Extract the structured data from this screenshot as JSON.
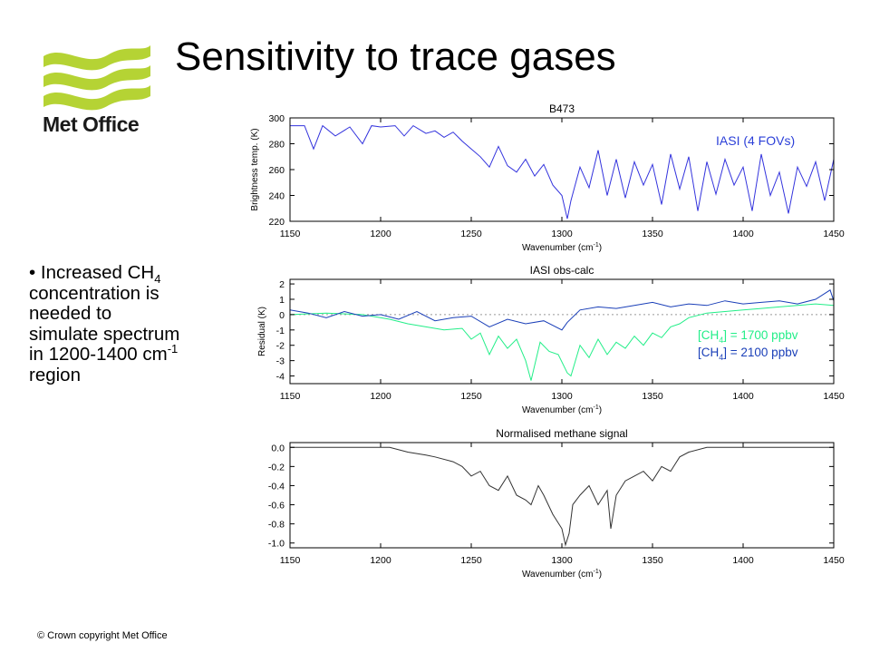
{
  "title": "Sensitivity to trace gases",
  "logo": {
    "text": "Met Office",
    "icon": "met-office-wave-logo",
    "color": "#b5d334"
  },
  "bullet": {
    "line1_pre": "• Increased CH",
    "line1_sub": "4",
    "line2": "concentration is",
    "line3": "needed to",
    "line4": "simulate spectrum",
    "line5_pre": "in 1200-1400 cm",
    "line5_sup": "-1",
    "line6": "region"
  },
  "footer": "© Crown copyright   Met Office",
  "chart_data": [
    {
      "type": "line",
      "title": "B473",
      "xlabel": "Wavenumber (cm-1)",
      "ylabel": "Brightness temp. (K)",
      "xlim": [
        1150,
        1450
      ],
      "ylim": [
        220,
        300
      ],
      "xticks": [
        "1150",
        "1200",
        "1250",
        "1300",
        "1350",
        "1400",
        "1450"
      ],
      "yticks": [
        "220",
        "240",
        "260",
        "280",
        "300"
      ],
      "series": [
        {
          "name": "IASI (4 FOVs)",
          "color": "#3333dd",
          "x": [
            1150,
            1158,
            1163,
            1168,
            1175,
            1183,
            1190,
            1195,
            1200,
            1208,
            1213,
            1218,
            1225,
            1230,
            1235,
            1240,
            1245,
            1250,
            1255,
            1260,
            1265,
            1270,
            1275,
            1280,
            1285,
            1290,
            1295,
            1300,
            1303,
            1305,
            1310,
            1315,
            1320,
            1325,
            1330,
            1335,
            1340,
            1345,
            1350,
            1355,
            1360,
            1365,
            1370,
            1375,
            1380,
            1385,
            1390,
            1395,
            1400,
            1405,
            1410,
            1415,
            1420,
            1425,
            1430,
            1435,
            1440,
            1445,
            1450
          ],
          "y": [
            294,
            294,
            276,
            294,
            286,
            293,
            280,
            294,
            293,
            294,
            286,
            294,
            288,
            290,
            285,
            289,
            282,
            276,
            270,
            262,
            278,
            263,
            258,
            268,
            255,
            264,
            248,
            240,
            222,
            236,
            262,
            246,
            275,
            240,
            268,
            238,
            266,
            248,
            264,
            233,
            272,
            245,
            270,
            228,
            266,
            241,
            268,
            248,
            262,
            228,
            272,
            240,
            258,
            226,
            262,
            247,
            266,
            236,
            268
          ]
        }
      ]
    },
    {
      "type": "line",
      "title": "IASI obs-calc",
      "xlabel": "Wavenumber (cm-1)",
      "ylabel": "Residual (K)",
      "xlim": [
        1150,
        1450
      ],
      "ylim": [
        -4.5,
        2.3
      ],
      "xticks": [
        "1150",
        "1200",
        "1250",
        "1300",
        "1350",
        "1400",
        "1450"
      ],
      "yticks": [
        "-4",
        "-3",
        "-2",
        "-1",
        "0",
        "1",
        "2"
      ],
      "legend": {
        "placement": "right",
        "green_prefix": "[CH",
        "green_sub": "4",
        "green_suffix": "] = 1700 ppbv",
        "blue_prefix": "[CH",
        "blue_sub": "4",
        "blue_suffix": "] = 2100 ppbv"
      },
      "series": [
        {
          "name": "[CH4] = 1700 ppbv",
          "color": "#22ee88",
          "x": [
            1150,
            1170,
            1190,
            1205,
            1215,
            1225,
            1235,
            1245,
            1250,
            1255,
            1260,
            1265,
            1270,
            1275,
            1280,
            1283,
            1288,
            1293,
            1298,
            1303,
            1305,
            1310,
            1315,
            1320,
            1325,
            1330,
            1335,
            1340,
            1345,
            1350,
            1355,
            1360,
            1365,
            1370,
            1380,
            1390,
            1400,
            1410,
            1420,
            1430,
            1440,
            1450
          ],
          "y": [
            0,
            0.1,
            0,
            -0.3,
            -0.6,
            -0.8,
            -1.0,
            -0.9,
            -1.6,
            -1.2,
            -2.6,
            -1.4,
            -2.2,
            -1.6,
            -3.0,
            -4.3,
            -1.8,
            -2.4,
            -2.6,
            -3.8,
            -4.0,
            -2.0,
            -2.8,
            -1.6,
            -2.6,
            -1.8,
            -2.2,
            -1.4,
            -2.0,
            -1.2,
            -1.5,
            -0.8,
            -0.6,
            -0.2,
            0.1,
            0.2,
            0.3,
            0.4,
            0.5,
            0.6,
            0.7,
            0.6
          ]
        },
        {
          "name": "[CH4] = 2100 ppbv",
          "color": "#1a3fb8",
          "x": [
            1150,
            1160,
            1170,
            1180,
            1190,
            1200,
            1210,
            1220,
            1230,
            1240,
            1250,
            1260,
            1270,
            1280,
            1290,
            1300,
            1303,
            1310,
            1320,
            1330,
            1340,
            1350,
            1360,
            1370,
            1380,
            1390,
            1400,
            1410,
            1420,
            1430,
            1440,
            1448,
            1450
          ],
          "y": [
            0.3,
            0.1,
            -0.2,
            0.2,
            -0.1,
            0.0,
            -0.3,
            0.2,
            -0.4,
            -0.2,
            -0.1,
            -0.8,
            -0.3,
            -0.6,
            -0.4,
            -1.0,
            -0.5,
            0.3,
            0.5,
            0.4,
            0.6,
            0.8,
            0.5,
            0.7,
            0.6,
            0.9,
            0.7,
            0.8,
            0.9,
            0.7,
            1.0,
            1.6,
            0.9
          ]
        }
      ]
    },
    {
      "type": "line",
      "title": "Normalised methane signal",
      "xlabel": "Wavenumber (cm-1)",
      "ylabel": "",
      "xlim": [
        1150,
        1450
      ],
      "ylim": [
        -1.05,
        0.05
      ],
      "xticks": [
        "1150",
        "1200",
        "1250",
        "1300",
        "1350",
        "1400",
        "1450"
      ],
      "yticks": [
        "-1.0",
        "-0.8",
        "-0.6",
        "-0.4",
        "-0.2",
        "0.0"
      ],
      "series": [
        {
          "name": "",
          "color": "#333333",
          "x": [
            1150,
            1205,
            1215,
            1225,
            1230,
            1240,
            1245,
            1250,
            1255,
            1260,
            1265,
            1270,
            1275,
            1280,
            1283,
            1287,
            1290,
            1295,
            1300,
            1302,
            1304,
            1306,
            1310,
            1315,
            1320,
            1325,
            1327,
            1330,
            1335,
            1340,
            1345,
            1350,
            1355,
            1360,
            1365,
            1370,
            1380,
            1450
          ],
          "y": [
            0,
            0,
            -0.05,
            -0.08,
            -0.1,
            -0.15,
            -0.2,
            -0.3,
            -0.25,
            -0.4,
            -0.45,
            -0.3,
            -0.5,
            -0.55,
            -0.6,
            -0.4,
            -0.5,
            -0.7,
            -0.85,
            -1.02,
            -0.9,
            -0.6,
            -0.5,
            -0.4,
            -0.6,
            -0.45,
            -0.85,
            -0.5,
            -0.35,
            -0.3,
            -0.25,
            -0.35,
            -0.2,
            -0.25,
            -0.1,
            -0.05,
            0,
            0
          ]
        }
      ]
    }
  ]
}
